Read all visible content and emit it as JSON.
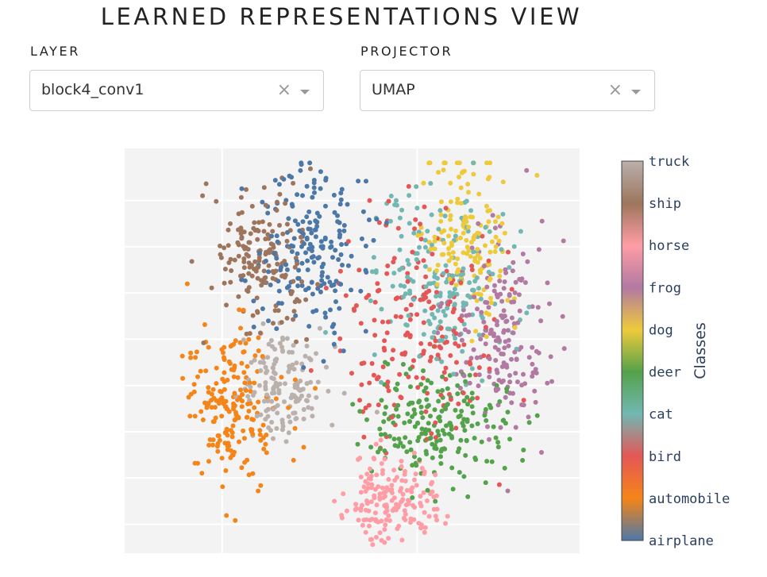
{
  "page": {
    "title": "LEARNED REPRESENTATIONS VIEW"
  },
  "controls": {
    "layer": {
      "label": "LAYER",
      "value": "block4_conv1"
    },
    "projector": {
      "label": "PROJECTOR",
      "value": "UMAP"
    },
    "clear_glyph": "×"
  },
  "chart_data": {
    "type": "scatter",
    "title": "",
    "xlabel": "",
    "ylabel": "",
    "grid": true,
    "colorbar": {
      "title": "Classes",
      "classes": [
        "airplane",
        "automobile",
        "bird",
        "cat",
        "deer",
        "dog",
        "frog",
        "horse",
        "ship",
        "truck"
      ],
      "colors": [
        "#4c78a8",
        "#f58518",
        "#e45756",
        "#72b7b2",
        "#54a24b",
        "#eeca3b",
        "#b279a2",
        "#ff9da6",
        "#9d755d",
        "#bab0ac"
      ]
    },
    "clusters": [
      {
        "class": "truck",
        "cx": -1.05,
        "cy": -0.55,
        "sx": 0.35,
        "sy": 0.5,
        "n": 150
      },
      {
        "class": "automobile",
        "cx": -1.85,
        "cy": -1.0,
        "sx": 0.35,
        "sy": 0.7,
        "n": 200
      },
      {
        "class": "ship",
        "cx": -1.45,
        "cy": 1.55,
        "sx": 0.35,
        "sy": 0.6,
        "n": 170
      },
      {
        "class": "airplane",
        "cx": -0.6,
        "cy": 1.7,
        "sx": 0.45,
        "sy": 0.75,
        "n": 200
      },
      {
        "class": "dog",
        "cx": 1.75,
        "cy": 2.0,
        "sx": 0.35,
        "sy": 0.7,
        "n": 150
      },
      {
        "class": "cat",
        "cx": 1.4,
        "cy": 1.2,
        "sx": 0.55,
        "sy": 0.8,
        "n": 180
      },
      {
        "class": "frog",
        "cx": 2.35,
        "cy": 0.25,
        "sx": 0.4,
        "sy": 0.95,
        "n": 180
      },
      {
        "class": "deer",
        "cx": 1.35,
        "cy": -1.3,
        "sx": 0.55,
        "sy": 0.5,
        "n": 210
      },
      {
        "class": "horse",
        "cx": 0.6,
        "cy": -2.55,
        "sx": 0.35,
        "sy": 0.35,
        "n": 170
      },
      {
        "class": "bird",
        "cx": 1.0,
        "cy": 0.4,
        "sx": 0.6,
        "sy": 1.0,
        "n": 200
      }
    ]
  }
}
